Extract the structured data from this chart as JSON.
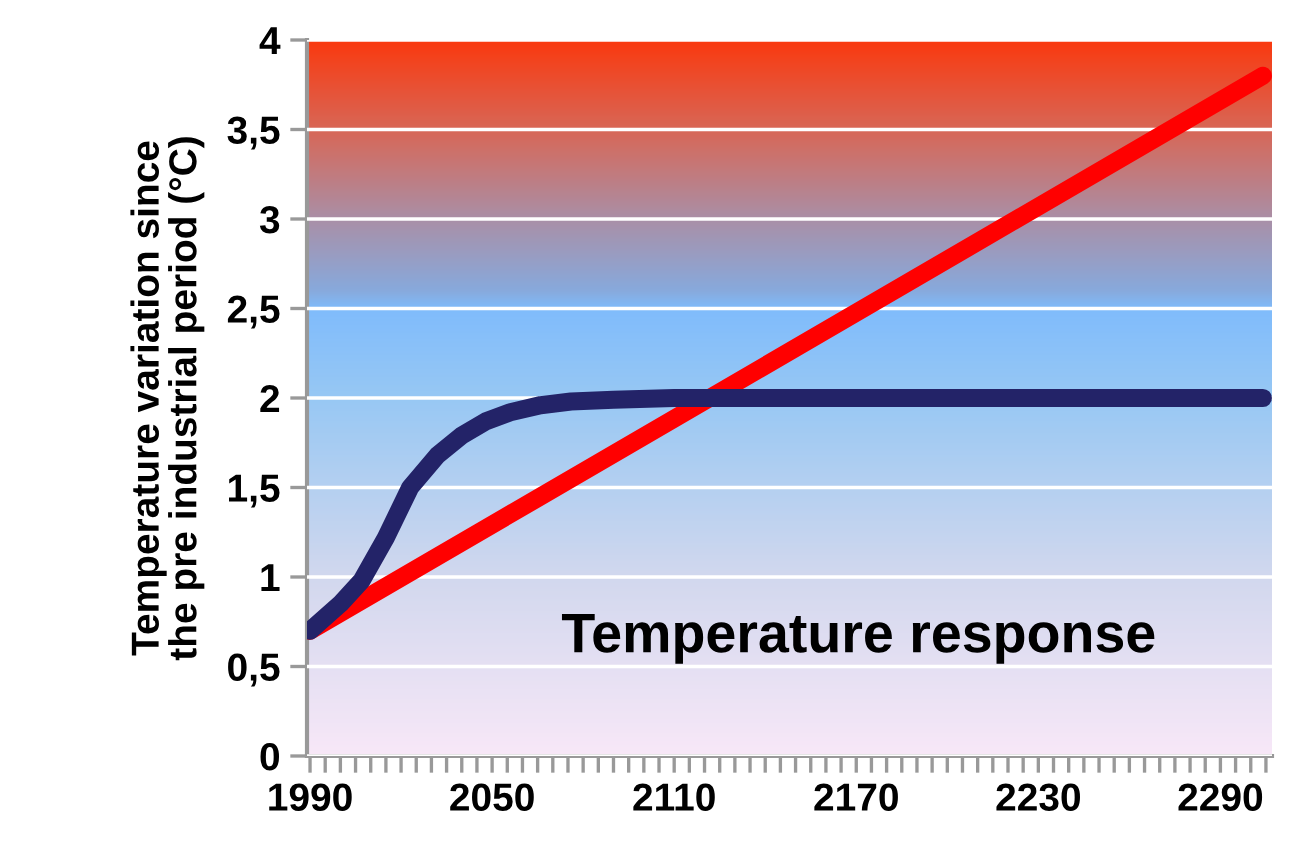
{
  "chart_data": {
    "type": "line",
    "ylabel": "Temperature variation since\nthe pre industrial period (°C)",
    "annotations": [
      "Temperature response"
    ],
    "series": [
      {
        "color": "#ff0000",
        "x": [
          1990,
          2304
        ],
        "values": [
          0.7,
          3.8
        ]
      },
      {
        "color": "#232368",
        "x": [
          1990,
          2000,
          2007,
          2015,
          2023,
          2032,
          2040,
          2048,
          2056,
          2066,
          2076,
          2090,
          2110,
          2150,
          2304
        ],
        "values": [
          0.7,
          0.85,
          0.98,
          1.22,
          1.5,
          1.68,
          1.79,
          1.87,
          1.92,
          1.96,
          1.98,
          1.99,
          2.0,
          2.0,
          2.0
        ]
      }
    ],
    "xlim": [
      1989,
      2307
    ],
    "xticks": [
      1990,
      {
        "value": 1995,
        "label": null
      },
      {
        "value": 2000,
        "label": null
      },
      {
        "value": 2005,
        "label": null
      },
      {
        "value": 2010,
        "label": null
      },
      {
        "value": 2015,
        "label": null
      },
      {
        "value": 2020,
        "label": null
      },
      {
        "value": 2025,
        "label": null
      },
      {
        "value": 2030,
        "label": null
      },
      {
        "value": 2035,
        "label": null
      },
      {
        "value": 2040,
        "label": null
      },
      {
        "value": 2045,
        "label": null
      },
      2050,
      {
        "value": 2055,
        "label": null
      },
      {
        "value": 2060,
        "label": null
      },
      {
        "value": 2065,
        "label": null
      },
      {
        "value": 2070,
        "label": null
      },
      {
        "value": 2075,
        "label": null
      },
      {
        "value": 2080,
        "label": null
      },
      {
        "value": 2085,
        "label": null
      },
      {
        "value": 2090,
        "label": null
      },
      {
        "value": 2095,
        "label": null
      },
      {
        "value": 2100,
        "label": null
      },
      {
        "value": 2105,
        "label": null
      },
      2110,
      {
        "value": 2115,
        "label": null
      },
      {
        "value": 2120,
        "label": null
      },
      {
        "value": 2125,
        "label": null
      },
      {
        "value": 2130,
        "label": null
      },
      {
        "value": 2135,
        "label": null
      },
      {
        "value": 2140,
        "label": null
      },
      {
        "value": 2145,
        "label": null
      },
      {
        "value": 2150,
        "label": null
      },
      {
        "value": 2155,
        "label": null
      },
      {
        "value": 2160,
        "label": null
      },
      {
        "value": 2165,
        "label": null
      },
      2170,
      {
        "value": 2175,
        "label": null
      },
      {
        "value": 2180,
        "label": null
      },
      {
        "value": 2185,
        "label": null
      },
      {
        "value": 2190,
        "label": null
      },
      {
        "value": 2195,
        "label": null
      },
      {
        "value": 2200,
        "label": null
      },
      {
        "value": 2205,
        "label": null
      },
      {
        "value": 2210,
        "label": null
      },
      {
        "value": 2215,
        "label": null
      },
      {
        "value": 2220,
        "label": null
      },
      {
        "value": 2225,
        "label": null
      },
      2230,
      {
        "value": 2235,
        "label": null
      },
      {
        "value": 2240,
        "label": null
      },
      {
        "value": 2245,
        "label": null
      },
      {
        "value": 2250,
        "label": null
      },
      {
        "value": 2255,
        "label": null
      },
      {
        "value": 2260,
        "label": null
      },
      {
        "value": 2265,
        "label": null
      },
      {
        "value": 2270,
        "label": null
      },
      {
        "value": 2275,
        "label": null
      },
      {
        "value": 2280,
        "label": null
      },
      {
        "value": 2285,
        "label": null
      },
      2290,
      {
        "value": 2295,
        "label": null
      },
      {
        "value": 2300,
        "label": null
      },
      {
        "value": 2305,
        "label": null
      }
    ],
    "ylim": [
      0,
      4
    ],
    "yticks": [
      0,
      {
        "value": 0.5,
        "label": "0,5"
      },
      1,
      {
        "value": 1.5,
        "label": "1,5"
      },
      2,
      {
        "value": 2.5,
        "label": "2,5"
      },
      3,
      {
        "value": 3.5,
        "label": "3,5"
      },
      4
    ],
    "grid": "y",
    "line_style": "solid",
    "marker": "none"
  }
}
